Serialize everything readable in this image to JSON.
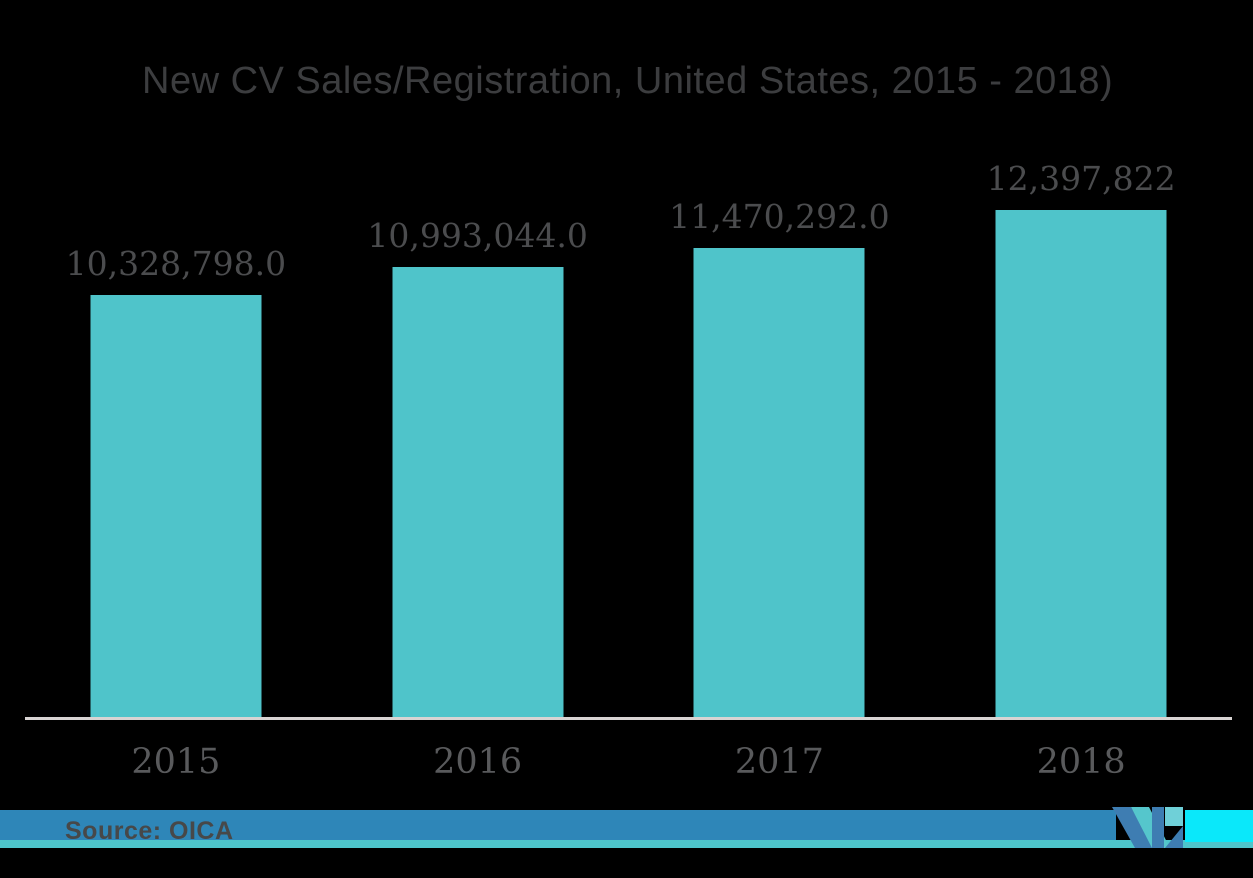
{
  "background_color": "#000000",
  "chart_data": {
    "type": "bar",
    "title": "New CV Sales/Registration, United States, 2015 - 2018)",
    "categories": [
      "2015",
      "2016",
      "2017",
      "2018"
    ],
    "values": [
      10328798,
      10993044,
      11470292,
      12397822
    ],
    "value_labels": [
      "10,328,798.0",
      "10,993,044.0",
      "11,470,292.0",
      "12,397,822"
    ],
    "series_name": "New CV Sales/Registration",
    "xlabel": "",
    "ylabel": "",
    "ylim": [
      0,
      12397822
    ],
    "grid": false,
    "legend": false,
    "bar_color": "#4FC4CA",
    "label_color": "#4B4C4E",
    "axis_line_color": "#D8D4D3"
  },
  "footer": {
    "source_label": "Source: OICA",
    "band_color": "#2E86B8",
    "strip_color": "#4EC5CB",
    "logo": {
      "name": "mordor-intelligence-logo",
      "blue": "#3E7DB2",
      "teal": "#55C6CC",
      "light_teal": "#6FD0D8",
      "cyan": "#0AE8FA"
    }
  }
}
